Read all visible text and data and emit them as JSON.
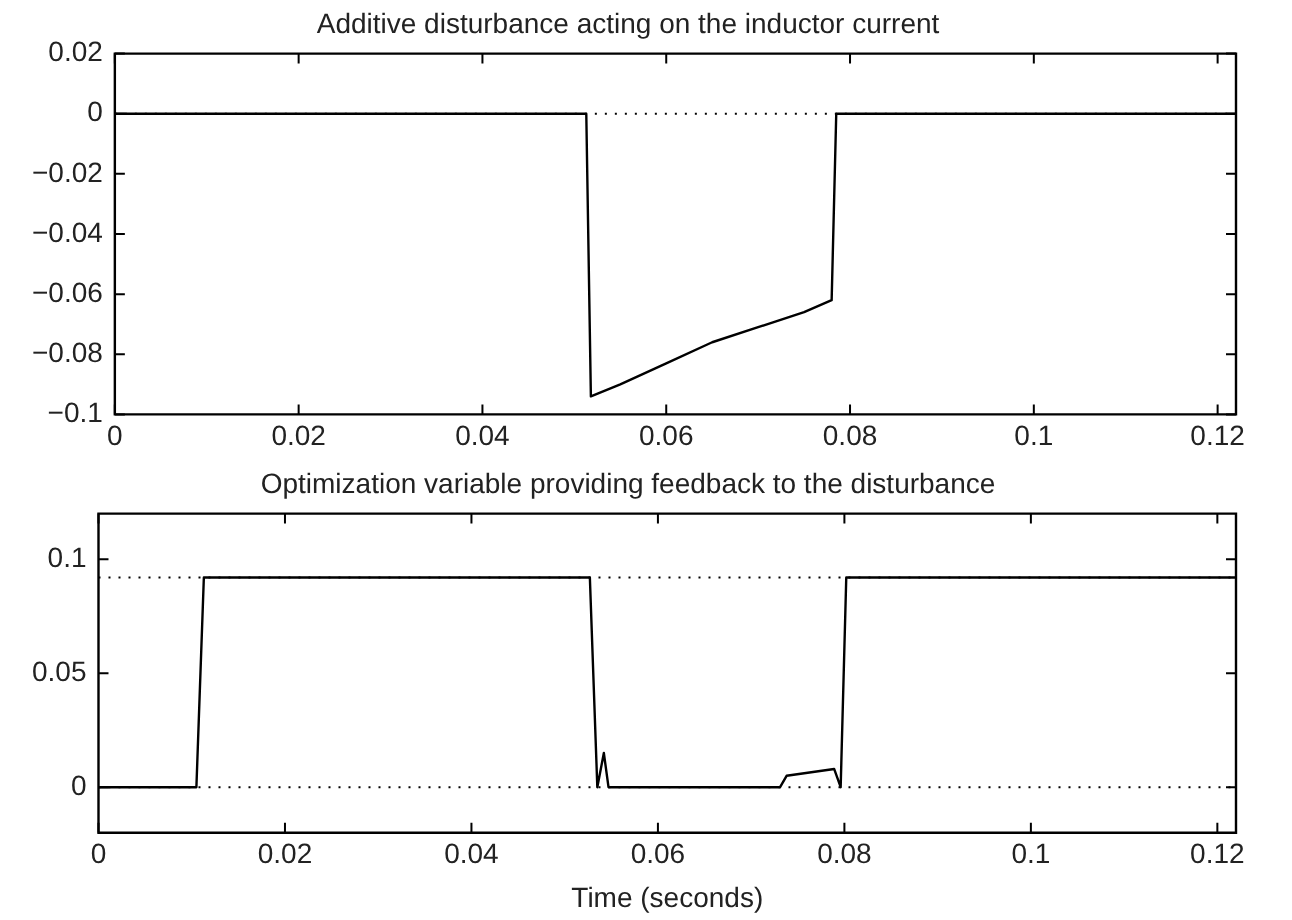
{
  "chart_data": [
    {
      "type": "line",
      "title": "Additive disturbance acting on the inductor current",
      "series": [
        {
          "color": "#000000",
          "x": [
            0,
            0.0513,
            0.0518,
            0.055,
            0.06,
            0.065,
            0.07,
            0.075,
            0.078,
            0.0785,
            0.122
          ],
          "values": [
            0,
            0,
            -0.094,
            -0.09,
            -0.083,
            -0.076,
            -0.071,
            -0.066,
            -0.062,
            0,
            0
          ]
        }
      ],
      "xlim": [
        0,
        0.122
      ],
      "xticks": [
        0,
        0.02,
        0.04,
        0.06,
        0.08,
        0.1,
        0.12
      ],
      "ylim": [
        -0.1,
        0.02
      ],
      "yticks": [
        -0.1,
        -0.08,
        -0.06,
        -0.04,
        -0.02,
        0,
        0.02
      ],
      "ref_lines": [
        {
          "axis": "y",
          "value": 0,
          "color": "#000000",
          "line_style": "dotted"
        }
      ],
      "grid": false,
      "legend": false,
      "marker": "none",
      "line_style": "solid"
    },
    {
      "type": "line",
      "title": "Optimization variable providing feedback to the disturbance",
      "xlabel": "Time (seconds)",
      "series": [
        {
          "color": "#000000",
          "x": [
            0,
            0.0105,
            0.0113,
            0.0527,
            0.0535,
            0.0542,
            0.0547,
            0.0731,
            0.0738,
            0.0789,
            0.0796,
            0.0802,
            0.122
          ],
          "values": [
            0,
            0,
            0.092,
            0.092,
            0,
            0.015,
            0,
            0,
            0.005,
            0.008,
            0,
            0.092,
            0.092
          ]
        }
      ],
      "xlim": [
        0,
        0.122
      ],
      "xticks": [
        0,
        0.02,
        0.04,
        0.06,
        0.08,
        0.1,
        0.12
      ],
      "ylim": [
        -0.02,
        0.12
      ],
      "yticks": [
        0,
        0.05,
        0.1
      ],
      "ref_lines": [
        {
          "axis": "y",
          "value": 0.092,
          "color": "#000000",
          "line_style": "dotted"
        },
        {
          "axis": "y",
          "value": 0,
          "color": "#000000",
          "line_style": "dotted"
        }
      ],
      "grid": false,
      "legend": false,
      "marker": "none",
      "line_style": "solid"
    }
  ]
}
